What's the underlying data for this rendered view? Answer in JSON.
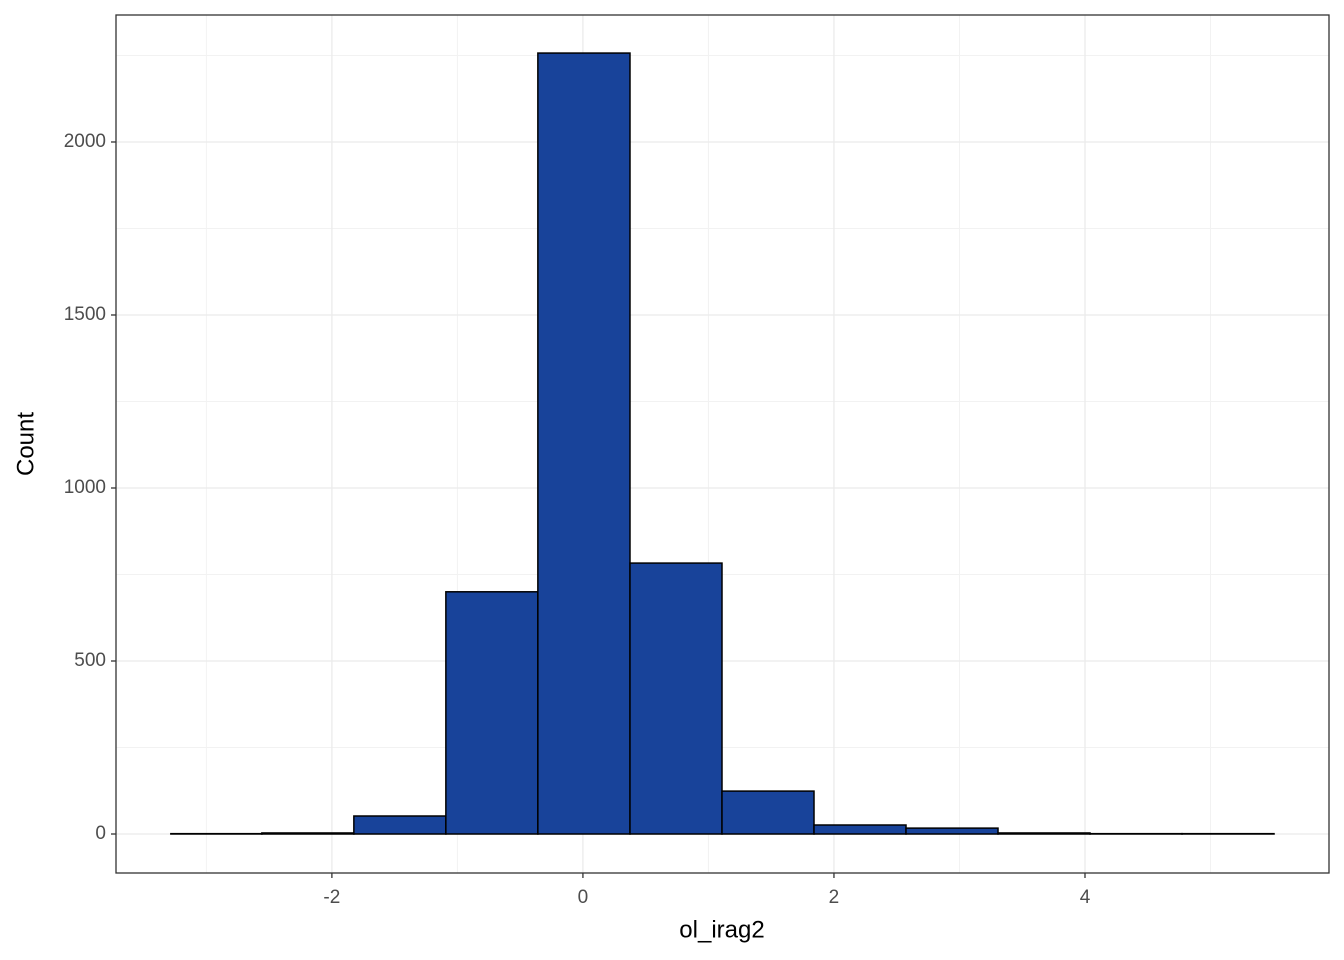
{
  "chart_data": {
    "type": "histogram",
    "xlabel": "ol_irag2",
    "ylabel": "Count",
    "bins": [
      -3.283,
      -2.558,
      -1.825,
      -1.092,
      -0.359,
      0.375,
      1.108,
      1.841,
      2.574,
      3.307,
      4.04,
      4.773,
      5.506
    ],
    "values": [
      1,
      3,
      52,
      700,
      2257,
      783,
      124,
      26,
      17,
      3,
      1,
      1
    ],
    "color": "#18439a",
    "xlim": [
      -3.72,
      5.944
    ],
    "xticks": [
      -2,
      0,
      2,
      4
    ],
    "ylim": [
      -112.7,
      2367
    ],
    "yticks": [
      0,
      500,
      1000,
      1500,
      2000
    ],
    "grid": true
  }
}
